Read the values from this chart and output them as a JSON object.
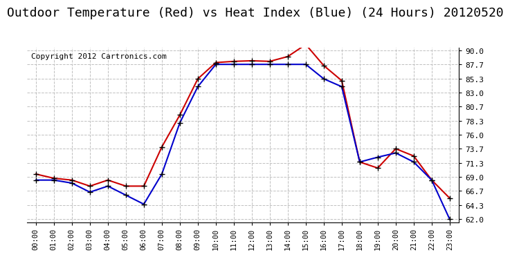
{
  "title": "Outdoor Temperature (Red) vs Heat Index (Blue) (24 Hours) 20120520",
  "copyright": "Copyright 2012 Cartronics.com",
  "hours": [
    "00:00",
    "01:00",
    "02:00",
    "03:00",
    "04:00",
    "05:00",
    "06:00",
    "07:00",
    "08:00",
    "09:00",
    "10:00",
    "11:00",
    "12:00",
    "13:00",
    "14:00",
    "15:00",
    "16:00",
    "17:00",
    "18:00",
    "19:00",
    "20:00",
    "21:00",
    "22:00",
    "23:00"
  ],
  "temp_red": [
    69.5,
    68.8,
    68.5,
    67.5,
    68.5,
    67.5,
    67.5,
    74.0,
    79.3,
    85.3,
    88.0,
    88.2,
    88.3,
    88.2,
    89.0,
    91.0,
    87.5,
    85.0,
    71.5,
    70.5,
    73.7,
    72.5,
    68.5,
    65.5
  ],
  "heat_blue": [
    68.5,
    68.5,
    68.0,
    66.5,
    67.5,
    66.0,
    64.5,
    69.5,
    78.0,
    84.0,
    87.7,
    87.7,
    87.7,
    87.7,
    87.7,
    87.7,
    85.3,
    84.0,
    71.5,
    72.3,
    73.0,
    71.5,
    68.5,
    62.0
  ],
  "ylim_min": 62.0,
  "ylim_max": 90.0,
  "yticks": [
    62.0,
    64.3,
    66.7,
    69.0,
    71.3,
    73.7,
    76.0,
    78.3,
    80.7,
    83.0,
    85.3,
    87.7,
    90.0
  ],
  "bg_color": "#ffffff",
  "grid_color": "#c0c0c0",
  "red_color": "#cc0000",
  "blue_color": "#0000cc",
  "marker_color": "#000000",
  "title_fontsize": 13,
  "copyright_fontsize": 8
}
